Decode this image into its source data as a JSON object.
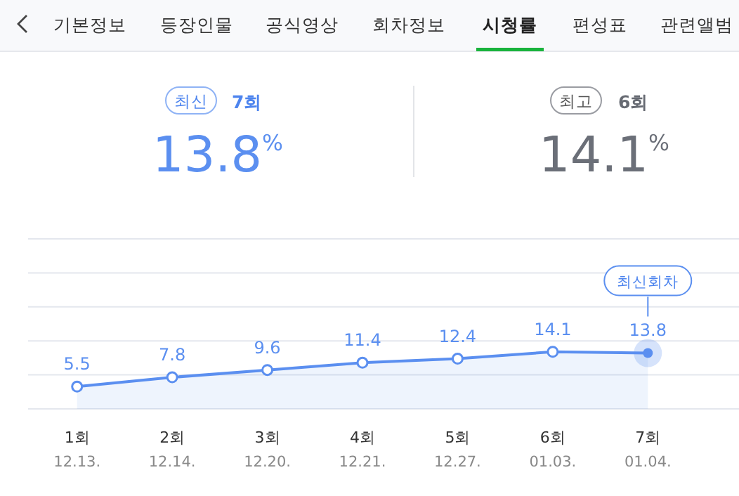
{
  "chart_data": {
    "type": "area",
    "categories": [
      "1회\n12.13.",
      "2회\n12.14.",
      "3회\n12.20.",
      "4회\n12.21.",
      "5회\n12.27.",
      "6회\n01.03.",
      "7회\n01.04."
    ],
    "series": [
      {
        "color": "#5b8ff0",
        "values": [
          5.5,
          7.8,
          9.6,
          11.4,
          12.4,
          14.1,
          13.8
        ]
      }
    ],
    "ylim": [
      0,
      42
    ],
    "yticks": [
      {
        "value": 0,
        "label": null
      },
      {
        "value": 8.4,
        "label": null
      },
      {
        "value": 16.8,
        "label": null
      },
      {
        "value": 25.2,
        "label": null
      },
      {
        "value": 33.6,
        "label": null
      },
      {
        "value": 42,
        "label": null
      }
    ],
    "tick_labels": "x",
    "grid": "y",
    "marker": "circle",
    "data_labels": true,
    "annotations": [
      "기본정보",
      "등장인물",
      "공식영상",
      "회차정보",
      "시청률",
      "편성표",
      "관련앨범",
      "최신",
      "7회",
      "13.8$^{%}$",
      "최고",
      "6회",
      "14.1$^{%}$",
      "최신회차"
    ]
  }
}
